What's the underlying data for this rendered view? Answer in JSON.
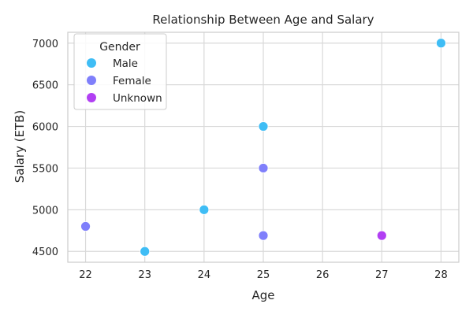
{
  "chart_data": {
    "type": "scatter",
    "title": "Relationship Between Age and Salary",
    "xlabel": "Age",
    "ylabel": "Salary (ETB)",
    "xlim": [
      21.7,
      28.3
    ],
    "ylim": [
      4370,
      7130
    ],
    "xticks": [
      22,
      23,
      24,
      25,
      26,
      27,
      28
    ],
    "yticks": [
      4500,
      5000,
      5500,
      6000,
      6500,
      7000
    ],
    "grid": true,
    "legend": {
      "title": "Gender",
      "placement": "top-left"
    },
    "series": [
      {
        "name": "Male",
        "color": "#3fbdf5",
        "points": [
          {
            "x": 23,
            "y": 4500
          },
          {
            "x": 24,
            "y": 5000
          },
          {
            "x": 25,
            "y": 6000
          },
          {
            "x": 28,
            "y": 7000
          }
        ]
      },
      {
        "name": "Female",
        "color": "#7f7ffb",
        "points": [
          {
            "x": 22,
            "y": 4800
          },
          {
            "x": 25,
            "y": 5500
          },
          {
            "x": 25,
            "y": 4690
          }
        ]
      },
      {
        "name": "Unknown",
        "color": "#b13ff3",
        "points": [
          {
            "x": 27,
            "y": 4690
          }
        ]
      }
    ]
  }
}
